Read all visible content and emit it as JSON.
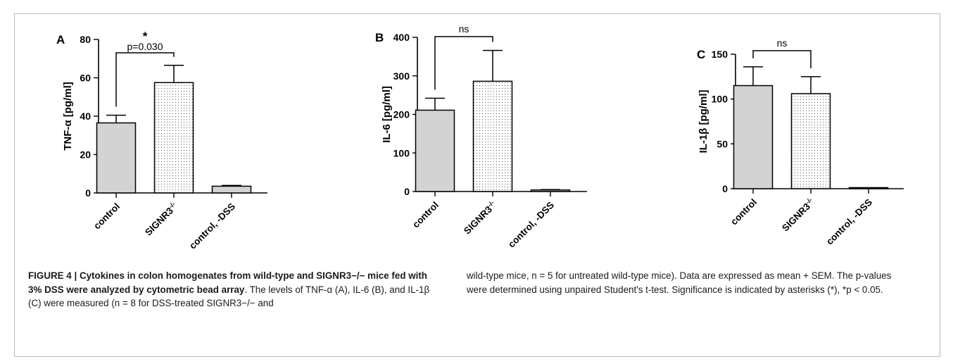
{
  "chart_data": [
    {
      "type": "bar",
      "panel": "A",
      "ylabel": "TNF-α [pg/ml]",
      "categories": [
        "control",
        "SIGNR3-/-",
        "control, -DSS"
      ],
      "values": [
        36.5,
        57.5,
        3.5
      ],
      "errors": [
        4,
        9,
        0.4
      ],
      "ylim": [
        0,
        80
      ],
      "yticks": [
        0,
        20,
        40,
        60,
        80
      ],
      "bracket": {
        "from": 0,
        "to": 1,
        "labels": [
          "*",
          "p=0.030"
        ]
      }
    },
    {
      "type": "bar",
      "panel": "B",
      "ylabel": "IL-6 [pg/ml]",
      "categories": [
        "control",
        "SIGNR3-/-",
        "control, -DSS"
      ],
      "values": [
        211,
        286,
        4
      ],
      "errors": [
        31,
        80,
        1
      ],
      "ylim": [
        0,
        400
      ],
      "yticks": [
        0,
        100,
        200,
        300,
        400
      ],
      "bracket": {
        "from": 0,
        "to": 1,
        "labels": [
          "ns"
        ]
      }
    },
    {
      "type": "bar",
      "panel": "C",
      "ylabel": "IL-1β [pg/ml]",
      "categories": [
        "control",
        "SIGNR3-/-",
        "control, -DSS"
      ],
      "values": [
        115,
        106,
        0.5
      ],
      "errors": [
        21,
        19,
        0.3
      ],
      "ylim": [
        0,
        150
      ],
      "yticks": [
        0,
        50,
        100,
        150
      ],
      "bracket": {
        "from": 0,
        "to": 1,
        "labels": [
          "ns"
        ]
      }
    }
  ],
  "caption": {
    "left": {
      "bold": "FIGURE 4 | Cytokines in colon homogenates from wild-type and SIGNR3−/− mice fed with 3% DSS were analyzed by cytometric bead array",
      "rest": ". The levels of TNF-α (A), IL-6 (B), and IL-1β (C) were measured (n = 8 for DSS-treated SIGNR3−/− and"
    },
    "right": "wild-type mice, n = 5 for untreated wild-type mice). Data are expressed as mean + SEM. The p-values were determined using unpaired Student's t-test. Significance is indicated by asterisks (*), *p < 0.05."
  }
}
